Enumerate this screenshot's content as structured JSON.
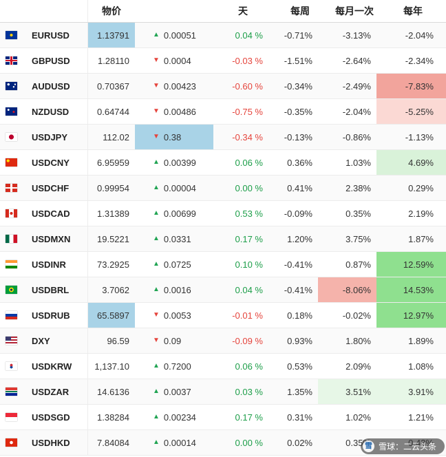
{
  "header": {
    "flag": "",
    "symbol": "",
    "price": "物价",
    "change": "",
    "day": "天",
    "week": "每周",
    "month": "每月一次",
    "year": "每年"
  },
  "colors": {
    "up_green": "#21a453",
    "down_red": "#e5443c",
    "day_positive": "#1d9e49",
    "day_negative": "#e5443c",
    "highlight_blue": "#a9d3e7",
    "cell_red_strong": "#f2a49c",
    "cell_red_medium": "#f5b3ab",
    "cell_red_light": "#fbd9d4",
    "cell_green_strong": "#8fe08f",
    "cell_green_light": "#d9f2d9",
    "cell_green_xlight": "#e7f7e7"
  },
  "rows": [
    {
      "flag": "eu",
      "symbol": "EURUSD",
      "price": "1.13791",
      "price_hl": "blue",
      "dir": "up",
      "change": "0.00051",
      "change_hl": "",
      "day": "0.04 %",
      "week": "-0.71%",
      "month": "-3.13%",
      "month_hl": "",
      "year": "-2.04%",
      "year_hl": ""
    },
    {
      "flag": "gb",
      "symbol": "GBPUSD",
      "price": "1.28110",
      "price_hl": "",
      "dir": "down",
      "change": "0.0004",
      "change_hl": "",
      "day": "-0.03 %",
      "week": "-1.51%",
      "month": "-2.64%",
      "month_hl": "",
      "year": "-2.34%",
      "year_hl": ""
    },
    {
      "flag": "au",
      "symbol": "AUDUSD",
      "price": "0.70367",
      "price_hl": "",
      "dir": "down",
      "change": "0.00423",
      "change_hl": "",
      "day": "-0.60 %",
      "week": "-0.34%",
      "month": "-2.49%",
      "month_hl": "",
      "year": "-7.83%",
      "year_hl": "red-strong"
    },
    {
      "flag": "nz",
      "symbol": "NZDUSD",
      "price": "0.64744",
      "price_hl": "",
      "dir": "down",
      "change": "0.00486",
      "change_hl": "",
      "day": "-0.75 %",
      "week": "-0.35%",
      "month": "-2.04%",
      "month_hl": "",
      "year": "-5.25%",
      "year_hl": "red-light"
    },
    {
      "flag": "jp",
      "symbol": "USDJPY",
      "price": "112.02",
      "price_hl": "",
      "dir": "down",
      "change": "0.38",
      "change_hl": "blue",
      "day": "-0.34 %",
      "week": "-0.13%",
      "month": "-0.86%",
      "month_hl": "",
      "year": "-1.13%",
      "year_hl": ""
    },
    {
      "flag": "cn",
      "symbol": "USDCNY",
      "price": "6.95959",
      "price_hl": "",
      "dir": "up",
      "change": "0.00399",
      "change_hl": "",
      "day": "0.06 %",
      "week": "0.36%",
      "month": "1.03%",
      "month_hl": "",
      "year": "4.69%",
      "year_hl": "green-light"
    },
    {
      "flag": "ch",
      "symbol": "USDCHF",
      "price": "0.99954",
      "price_hl": "",
      "dir": "up",
      "change": "0.00004",
      "change_hl": "",
      "day": "0.00 %",
      "week": "0.41%",
      "month": "2.38%",
      "month_hl": "",
      "year": "0.29%",
      "year_hl": ""
    },
    {
      "flag": "ca",
      "symbol": "USDCAD",
      "price": "1.31389",
      "price_hl": "",
      "dir": "up",
      "change": "0.00699",
      "change_hl": "",
      "day": "0.53 %",
      "week": "-0.09%",
      "month": "0.35%",
      "month_hl": "",
      "year": "2.19%",
      "year_hl": ""
    },
    {
      "flag": "mx",
      "symbol": "USDMXN",
      "price": "19.5221",
      "price_hl": "",
      "dir": "up",
      "change": "0.0331",
      "change_hl": "",
      "day": "0.17 %",
      "week": "1.20%",
      "month": "3.75%",
      "month_hl": "",
      "year": "1.87%",
      "year_hl": ""
    },
    {
      "flag": "in",
      "symbol": "USDINR",
      "price": "73.2925",
      "price_hl": "",
      "dir": "up",
      "change": "0.0725",
      "change_hl": "",
      "day": "0.10 %",
      "week": "-0.41%",
      "month": "0.87%",
      "month_hl": "",
      "year": "12.59%",
      "year_hl": "green-strong"
    },
    {
      "flag": "br",
      "symbol": "USDBRL",
      "price": "3.7062",
      "price_hl": "",
      "dir": "up",
      "change": "0.0016",
      "change_hl": "",
      "day": "0.04 %",
      "week": "-0.41%",
      "month": "-8.06%",
      "month_hl": "red-medium",
      "year": "14.53%",
      "year_hl": "green-strong"
    },
    {
      "flag": "ru",
      "symbol": "USDRUB",
      "price": "65.5897",
      "price_hl": "blue",
      "dir": "down",
      "change": "0.0053",
      "change_hl": "",
      "day": "-0.01 %",
      "week": "0.18%",
      "month": "-0.02%",
      "month_hl": "",
      "year": "12.97%",
      "year_hl": "green-strong"
    },
    {
      "flag": "us",
      "symbol": "DXY",
      "price": "96.59",
      "price_hl": "",
      "dir": "down",
      "change": "0.09",
      "change_hl": "",
      "day": "-0.09 %",
      "week": "0.93%",
      "month": "1.80%",
      "month_hl": "",
      "year": "1.89%",
      "year_hl": ""
    },
    {
      "flag": "kr",
      "symbol": "USDKRW",
      "price": "1,137.10",
      "price_hl": "",
      "dir": "up",
      "change": "0.7200",
      "change_hl": "",
      "day": "0.06 %",
      "week": "0.53%",
      "month": "2.09%",
      "month_hl": "",
      "year": "1.08%",
      "year_hl": ""
    },
    {
      "flag": "za",
      "symbol": "USDZAR",
      "price": "14.6136",
      "price_hl": "",
      "dir": "up",
      "change": "0.0037",
      "change_hl": "",
      "day": "0.03 %",
      "week": "1.35%",
      "month": "3.51%",
      "month_hl": "green-xlight",
      "year": "3.91%",
      "year_hl": "green-xlight"
    },
    {
      "flag": "sg",
      "symbol": "USDSGD",
      "price": "1.38284",
      "price_hl": "",
      "dir": "up",
      "change": "0.00234",
      "change_hl": "",
      "day": "0.17 %",
      "week": "0.31%",
      "month": "1.02%",
      "month_hl": "",
      "year": "1.21%",
      "year_hl": ""
    },
    {
      "flag": "hk",
      "symbol": "USDHKD",
      "price": "7.84084",
      "price_hl": "",
      "dir": "up",
      "change": "0.00014",
      "change_hl": "",
      "day": "0.00 %",
      "week": "0.02%",
      "month": "0.35%",
      "month_hl": "",
      "year": "0.43%",
      "year_hl": ""
    }
  ],
  "watermark": {
    "logo_char": "雪",
    "text": "雪球：二云头条"
  }
}
